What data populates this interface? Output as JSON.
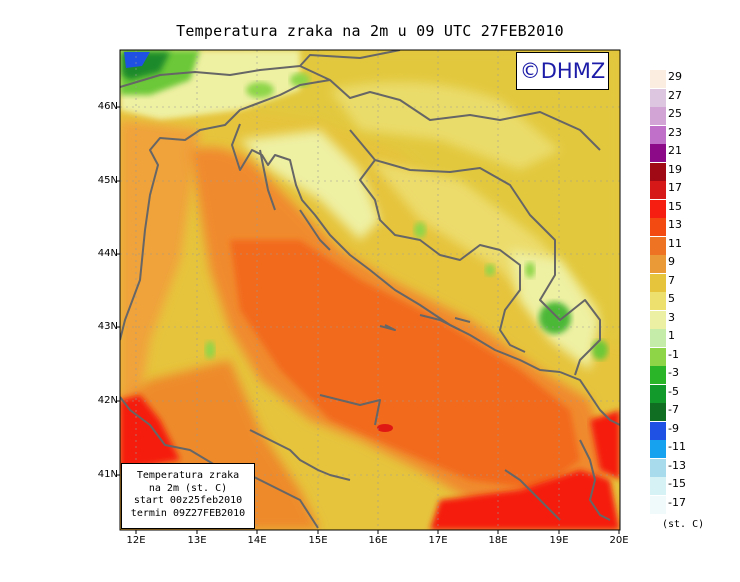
{
  "title": "Temperatura zraka na 2m u 09 UTC 27FEB2010",
  "logo": "©DHMZ",
  "info_box": {
    "line1": "Temperatura zraka",
    "line2": "na 2m (st. C)",
    "line3": "start 00z25feb2010",
    "line4": "termin 09Z27FEB2010"
  },
  "lat_labels": [
    "46N",
    "45N",
    "44N",
    "43N",
    "42N",
    "41N"
  ],
  "lon_labels": [
    "12E",
    "13E",
    "14E",
    "15E",
    "16E",
    "17E",
    "18E",
    "19E",
    "20E"
  ],
  "legend": {
    "unit": "(st. C)",
    "labels": [
      "29",
      "27",
      "25",
      "23",
      "21",
      "19",
      "17",
      "15",
      "13",
      "11",
      "9",
      "7",
      "5",
      "3",
      "1",
      "-1",
      "-3",
      "-5",
      "-7",
      "-9",
      "-11",
      "-13",
      "-15",
      "-17"
    ],
    "colors": [
      "#fbeee0",
      "#dcc6e0",
      "#d2a4d6",
      "#c070c8",
      "#8c0a88",
      "#a00a14",
      "#d61818",
      "#f51e10",
      "#f24a10",
      "#ee7424",
      "#ea9a36",
      "#e6c43c",
      "#eee06e",
      "#ecf0a2",
      "#c6ecaa",
      "#8ed648",
      "#2ab428",
      "#129a2a",
      "#0f6e21",
      "#1f52e4",
      "#16a2ee",
      "#a8dcec",
      "#d6f2f4",
      "#f0fafa"
    ]
  },
  "colors": {
    "sea_warm": "#f26a1a",
    "land_warm": "#f0a23a",
    "land_cool": "#e6d046",
    "mountain": "#d8e84a",
    "coast": "#666666",
    "logo_text": "#1c1ca8"
  }
}
